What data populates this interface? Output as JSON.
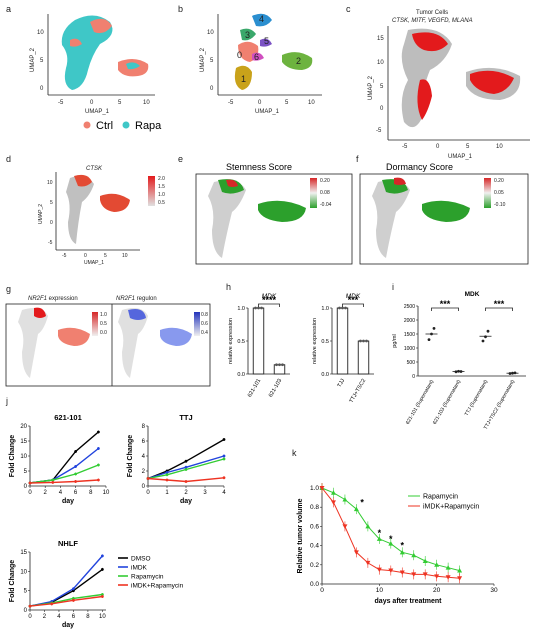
{
  "panels": {
    "a": {
      "letter": "a",
      "xlabel": "UMAP_1",
      "ylabel": "UMAP_2",
      "xticks": [
        "-5",
        "0",
        "5",
        "10"
      ],
      "yticks": [
        "0",
        "5",
        "10"
      ]
    },
    "b": {
      "letter": "b",
      "xlabel": "UMAP_1",
      "ylabel": "UMAP_2",
      "xticks": [
        "-5",
        "0",
        "5",
        "10"
      ],
      "yticks": [
        "0",
        "5",
        "10"
      ],
      "clusters": [
        "0",
        "1",
        "2",
        "3",
        "4",
        "5",
        "6"
      ]
    },
    "c": {
      "letter": "c",
      "title": "Tumor Cells",
      "subtitle": "CTSK, MITF, VEGFD, MLANA",
      "xlabel": "UMAP_1",
      "ylabel": "UMAP_2",
      "xticks": [
        "-5",
        "0",
        "5",
        "10"
      ],
      "yticks": [
        "-5",
        "0",
        "5",
        "10",
        "15"
      ]
    },
    "legend_ab": {
      "ctrl": "Ctrl",
      "rapa": "Rapa",
      "ctrl_color": "#f08070",
      "rapa_color": "#3fc7c7"
    },
    "d": {
      "letter": "d",
      "title": "CTSK",
      "xlabel": "UMAP_1",
      "ylabel": "UMAP_2",
      "xticks": [
        "-5",
        "0",
        "5",
        "10"
      ],
      "yticks": [
        "-5",
        "0",
        "5",
        "10"
      ],
      "scale": [
        "2.0",
        "1.5",
        "1.0",
        "0.5"
      ]
    },
    "e": {
      "letter": "e",
      "title": "Stemness Score",
      "scale": [
        "0.20",
        "0.08",
        "-0.04"
      ]
    },
    "f": {
      "letter": "f",
      "title": "Dormancy Score",
      "scale": [
        "0.20",
        "0.05",
        "-0.10"
      ]
    },
    "g": {
      "letter": "g",
      "title1_gene": "NR2F1",
      "title1_rest": " expression",
      "title2_gene": "NR2F1",
      "title2_rest": " regulon",
      "scale1": [
        "1.0",
        "0.5",
        "0.0"
      ],
      "scale2": [
        "0.8",
        "0.6",
        "0.4"
      ]
    },
    "h": {
      "letter": "h"
    },
    "i": {
      "letter": "i"
    },
    "j": {
      "letter": "j"
    },
    "k": {
      "letter": "k"
    }
  },
  "chart_data": [
    {
      "id": "h1",
      "type": "bar",
      "title": "MDK",
      "ylabel": "relative expression",
      "categories": [
        "621-101",
        "621-103"
      ],
      "values": [
        1.0,
        0.14
      ],
      "ylim": [
        0,
        1.0
      ],
      "yticks": [
        "0.0",
        "0.5",
        "1.0"
      ],
      "significance": "****"
    },
    {
      "id": "h2",
      "type": "bar",
      "title": "MDK",
      "ylabel": "relative expression",
      "categories": [
        "TJJ",
        "TTJ+TSC2"
      ],
      "values": [
        1.0,
        0.5
      ],
      "ylim": [
        0,
        1.0
      ],
      "yticks": [
        "0.0",
        "0.5",
        "1.0"
      ],
      "significance": "***"
    },
    {
      "id": "i",
      "type": "scatter",
      "title": "MDK",
      "ylabel": "pg/ml",
      "categories": [
        "621-101 (Supernatant)",
        "621-103 (Supernatant)",
        "TTJ (Supernatant)",
        "TTJ+TSC2 (Supernatant)"
      ],
      "points": [
        [
          1300,
          1500,
          1700
        ],
        [
          150,
          170,
          160
        ],
        [
          1250,
          1400,
          1600
        ],
        [
          90,
          100,
          110
        ]
      ],
      "means": [
        1500,
        160,
        1420,
        100
      ],
      "ylim": [
        0,
        2500
      ],
      "yticks": [
        "0",
        "500",
        "1000",
        "1500",
        "2000",
        "2500"
      ],
      "significance": [
        "***",
        "***"
      ]
    },
    {
      "id": "j1",
      "type": "line",
      "title": "621-101",
      "xlabel": "day",
      "ylabel": "Fold Change",
      "x": [
        0,
        3,
        6,
        9
      ],
      "xticks": [
        "0",
        "2",
        "4",
        "6",
        "8",
        "10"
      ],
      "xlim": [
        0,
        10
      ],
      "ylim": [
        0,
        20
      ],
      "yticks": [
        "0",
        "5",
        "10",
        "15",
        "20"
      ],
      "series": [
        {
          "name": "DMSO",
          "color": "#000000",
          "values": [
            1,
            2,
            11.5,
            18
          ]
        },
        {
          "name": "iMDK",
          "color": "#2244dd",
          "values": [
            1,
            2,
            6.5,
            12.5
          ]
        },
        {
          "name": "Rapamycin",
          "color": "#33cc33",
          "values": [
            1,
            2,
            4,
            7
          ]
        },
        {
          "name": "iMDK+Rapamycin",
          "color": "#ee3322",
          "values": [
            1,
            1.2,
            1.5,
            2
          ]
        }
      ]
    },
    {
      "id": "j2",
      "type": "line",
      "title": "TTJ",
      "xlabel": "day",
      "ylabel": "Fold Change",
      "x": [
        0,
        1,
        2,
        4
      ],
      "xticks": [
        "0",
        "1",
        "2",
        "3",
        "4"
      ],
      "xlim": [
        0,
        4
      ],
      "ylim": [
        0,
        8
      ],
      "yticks": [
        "0",
        "2",
        "4",
        "6",
        "8"
      ],
      "series": [
        {
          "name": "DMSO",
          "color": "#000000",
          "values": [
            1,
            2,
            3.3,
            6.2
          ]
        },
        {
          "name": "iMDK",
          "color": "#2244dd",
          "values": [
            1,
            1.8,
            2.5,
            4.0
          ]
        },
        {
          "name": "Rapamycin",
          "color": "#33cc33",
          "values": [
            1,
            1.5,
            2.2,
            3.6
          ]
        },
        {
          "name": "iMDK+Rapamycin",
          "color": "#ee3322",
          "values": [
            1,
            0.8,
            0.6,
            1.1
          ]
        }
      ]
    },
    {
      "id": "j3",
      "type": "line",
      "title": "NHLF",
      "xlabel": "day",
      "ylabel": "Fold Change",
      "x": [
        0,
        3,
        6,
        10
      ],
      "xticks": [
        "0",
        "2",
        "4",
        "6",
        "8",
        "10"
      ],
      "xlim": [
        0,
        10.5
      ],
      "ylim": [
        0,
        15
      ],
      "yticks": [
        "0",
        "5",
        "10",
        "15"
      ],
      "series": [
        {
          "name": "DMSO",
          "color": "#000000",
          "values": [
            1,
            2,
            5,
            10.5
          ]
        },
        {
          "name": "iMDK",
          "color": "#2244dd",
          "values": [
            1,
            2.2,
            5.5,
            14
          ]
        },
        {
          "name": "Rapamycin",
          "color": "#33cc33",
          "values": [
            1,
            1.8,
            3,
            4
          ]
        },
        {
          "name": "iMDK+Rapamycin",
          "color": "#ee3322",
          "values": [
            1,
            1.6,
            2.5,
            3.5
          ]
        }
      ]
    },
    {
      "id": "k",
      "type": "line",
      "xlabel": "days after treatment",
      "ylabel": "Relative tumor volume",
      "xlim": [
        0,
        30
      ],
      "xticks": [
        "0",
        "10",
        "20",
        "30"
      ],
      "ylim": [
        0,
        1.0
      ],
      "yticks": [
        "0.0",
        "0.2",
        "0.4",
        "0.6",
        "0.8",
        "1.0"
      ],
      "series": [
        {
          "name": "Rapamycin",
          "color": "#33cc33",
          "marker": "triangle-up",
          "x": [
            0,
            2,
            4,
            6,
            8,
            10,
            12,
            14,
            16,
            18,
            20,
            22,
            24
          ],
          "values": [
            1.0,
            0.95,
            0.88,
            0.78,
            0.6,
            0.47,
            0.42,
            0.33,
            0.3,
            0.24,
            0.2,
            0.17,
            0.14
          ]
        },
        {
          "name": "iMDK+Rapamycin",
          "color": "#ee3322",
          "marker": "triangle-down",
          "x": [
            0,
            2,
            4,
            6,
            8,
            10,
            12,
            14,
            16,
            18,
            20,
            22,
            24
          ],
          "values": [
            1.0,
            0.85,
            0.6,
            0.33,
            0.22,
            0.15,
            0.14,
            0.12,
            0.1,
            0.1,
            0.08,
            0.07,
            0.06
          ]
        }
      ],
      "significance": [
        {
          "x": 7,
          "y": 0.82,
          "label": "*"
        },
        {
          "x": 10,
          "y": 0.5,
          "label": "*"
        },
        {
          "x": 12,
          "y": 0.44,
          "label": "*"
        },
        {
          "x": 14,
          "y": 0.37,
          "label": "*"
        }
      ]
    }
  ]
}
